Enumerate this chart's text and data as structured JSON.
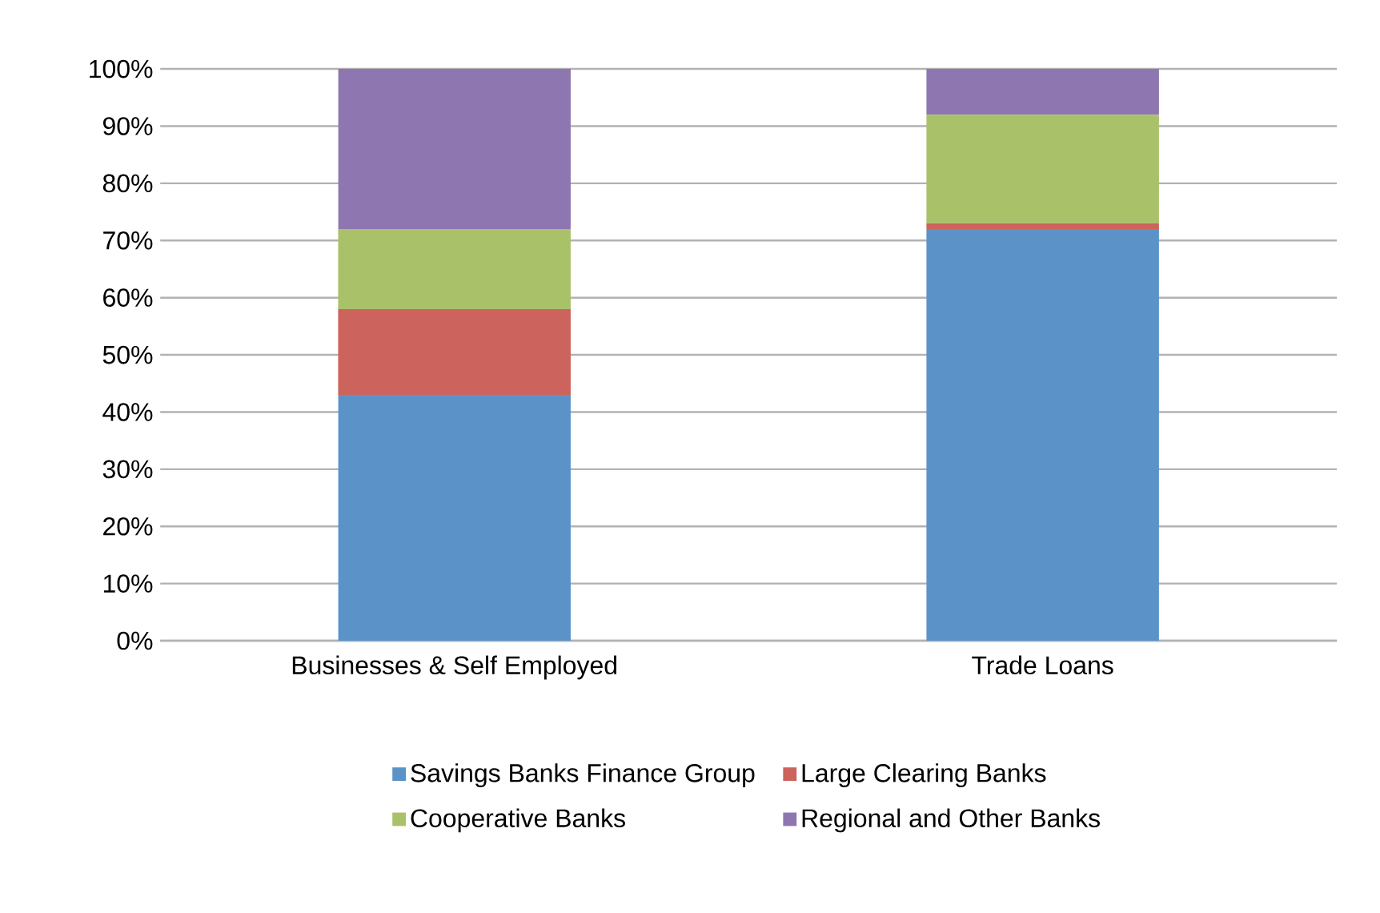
{
  "chart_data": {
    "type": "bar",
    "stacked": true,
    "categories": [
      "Businesses & Self Employed",
      "Trade Loans"
    ],
    "series": [
      {
        "name": "Savings Banks Finance Group",
        "color": "#5b93c8",
        "values": [
          43,
          72
        ]
      },
      {
        "name": "Large Clearing Banks",
        "color": "#cc635c",
        "values": [
          15,
          1
        ]
      },
      {
        "name": "Cooperative Banks",
        "color": "#a9c26a",
        "values": [
          14,
          19
        ]
      },
      {
        "name": "Regional and Other Banks",
        "color": "#8e77b0",
        "values": [
          28,
          8
        ]
      }
    ],
    "ylim": [
      0,
      100
    ],
    "yticks": [
      {
        "value": 0,
        "label": "0%"
      },
      {
        "value": 10,
        "label": "10%"
      },
      {
        "value": 20,
        "label": "20%"
      },
      {
        "value": 30,
        "label": "30%"
      },
      {
        "value": 40,
        "label": "40%"
      },
      {
        "value": 50,
        "label": "50%"
      },
      {
        "value": 60,
        "label": "60%"
      },
      {
        "value": 70,
        "label": "70%"
      },
      {
        "value": 80,
        "label": "80%"
      },
      {
        "value": 90,
        "label": "90%"
      },
      {
        "value": 100,
        "label": "100%"
      }
    ],
    "grid": "y",
    "legend": "bottom"
  }
}
